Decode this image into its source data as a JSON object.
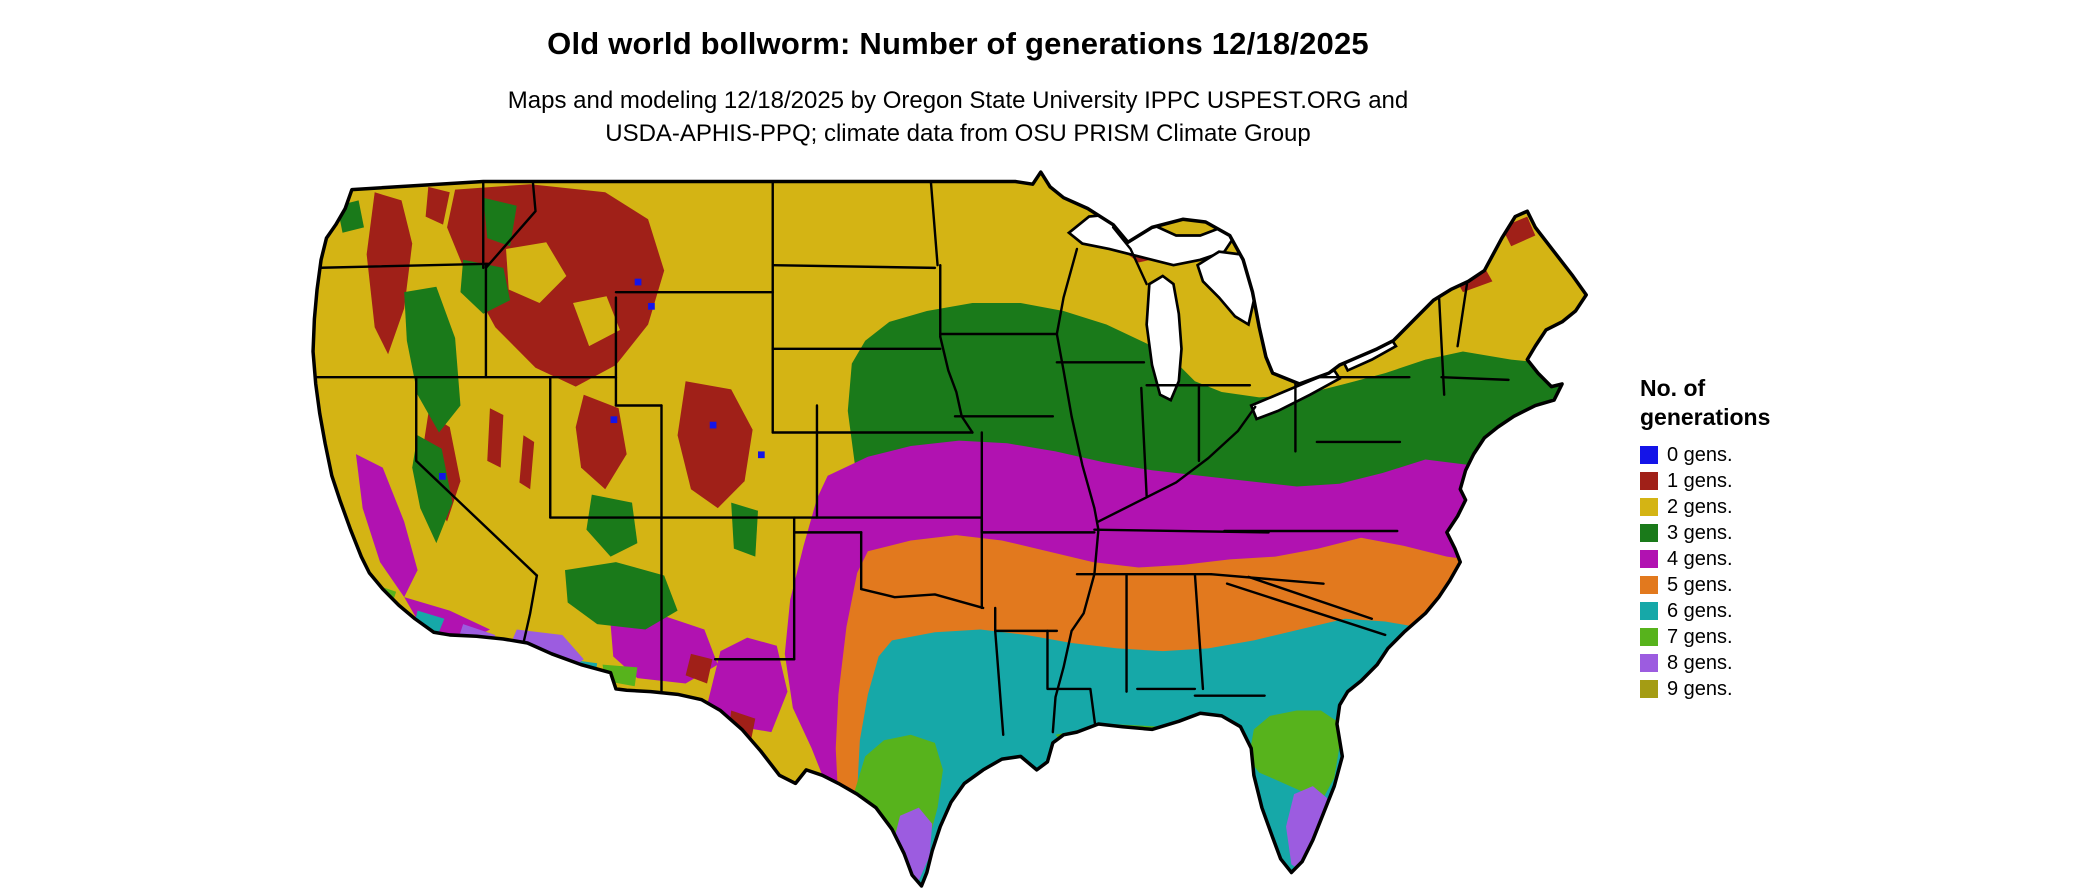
{
  "header": {
    "title": "Old world bollworm: Number of generations 12/18/2025",
    "subtitle_line1": "Maps and modeling 12/18/2025 by Oregon State University IPPC USPEST.ORG and",
    "subtitle_line2": "USDA-APHIS-PPQ; climate data from OSU PRISM Climate Group"
  },
  "legend": {
    "title_line1": "No. of",
    "title_line2": "generations",
    "items": [
      {
        "label": "0 gens.",
        "color": "#1414e8"
      },
      {
        "label": "1 gens.",
        "color": "#a02018"
      },
      {
        "label": "2 gens.",
        "color": "#d4b414"
      },
      {
        "label": "3 gens.",
        "color": "#1a7a1a"
      },
      {
        "label": "4 gens.",
        "color": "#b112b1"
      },
      {
        "label": "5 gens.",
        "color": "#e2791e"
      },
      {
        "label": "6 gens.",
        "color": "#16a8a8"
      },
      {
        "label": "7 gens.",
        "color": "#57b31c"
      },
      {
        "label": "8 gens.",
        "color": "#9c5ce0"
      },
      {
        "label": "9 gens.",
        "color": "#a49c14"
      }
    ]
  },
  "map": {
    "description": "Contiguous United States raster map of old world bollworm generation counts",
    "outline_color": "#000000",
    "water_color": "#ffffff"
  }
}
